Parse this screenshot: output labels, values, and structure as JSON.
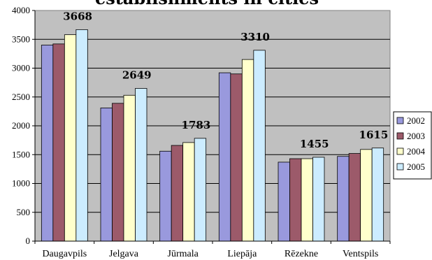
{
  "chart_data": {
    "type": "bar",
    "title": "establishments in cities",
    "categories": [
      "Daugavpils",
      "Jelgava",
      "Jūrmala",
      "Liepāja",
      "Rēzekne",
      "Ventspils"
    ],
    "series": [
      {
        "name": "2002",
        "color": "#9999dd",
        "values": [
          3400,
          2310,
          1560,
          2920,
          1370,
          1470
        ]
      },
      {
        "name": "2003",
        "color": "#9c5a6a",
        "values": [
          3420,
          2390,
          1660,
          2900,
          1430,
          1520
        ]
      },
      {
        "name": "2004",
        "color": "#ffffcc",
        "values": [
          3580,
          2530,
          1710,
          3150,
          1430,
          1590
        ]
      },
      {
        "name": "2005",
        "color": "#ccecff",
        "values": [
          3668,
          2649,
          1783,
          3310,
          1455,
          1615
        ]
      }
    ],
    "data_labels": [
      "3668",
      "2649",
      "1783",
      "3310",
      "1455",
      "1615"
    ],
    "y_ticks": [
      "0",
      "500",
      "1000",
      "1500",
      "2000",
      "2500",
      "3000",
      "3500",
      "4000"
    ],
    "ylim": [
      0,
      4000
    ],
    "xlabel": "",
    "ylabel": "",
    "grid": true,
    "legend_position": "right",
    "plot_background": "#c0c0c0"
  }
}
